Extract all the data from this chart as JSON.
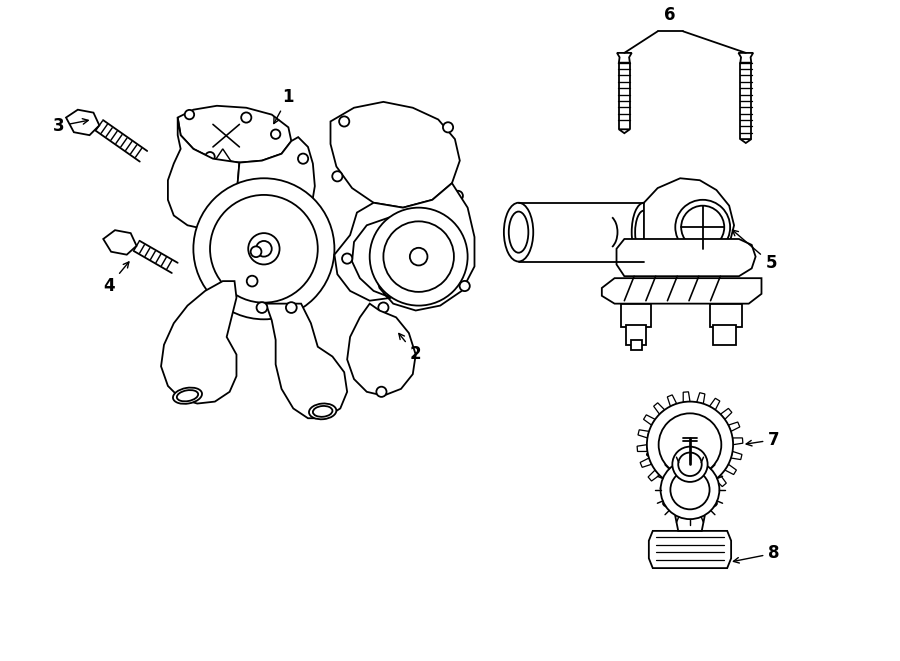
{
  "bg_color": "#ffffff",
  "line_color": "#000000",
  "lw": 1.3,
  "fig_width": 9.0,
  "fig_height": 6.61
}
